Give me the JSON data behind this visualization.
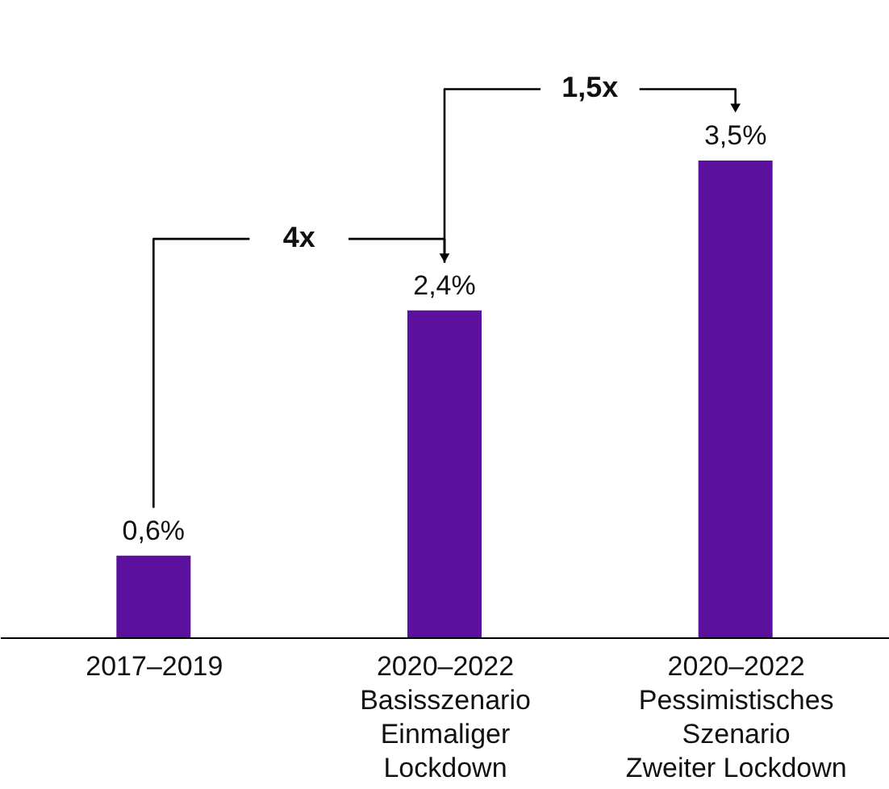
{
  "chart_data": {
    "type": "bar",
    "categories": [
      "2017–2019",
      "2020–2022\nBasisszenario\nEinmaliger\nLockdown",
      "2020–2022\nPessimistisches\nSzenario\nZweiter Lockdown"
    ],
    "values": [
      0.6,
      2.4,
      3.5
    ],
    "value_labels": [
      "0,6%",
      "2,4%",
      "3,5%"
    ],
    "color": "#5b119e",
    "annotations": [
      "4x",
      "1,5x"
    ]
  }
}
